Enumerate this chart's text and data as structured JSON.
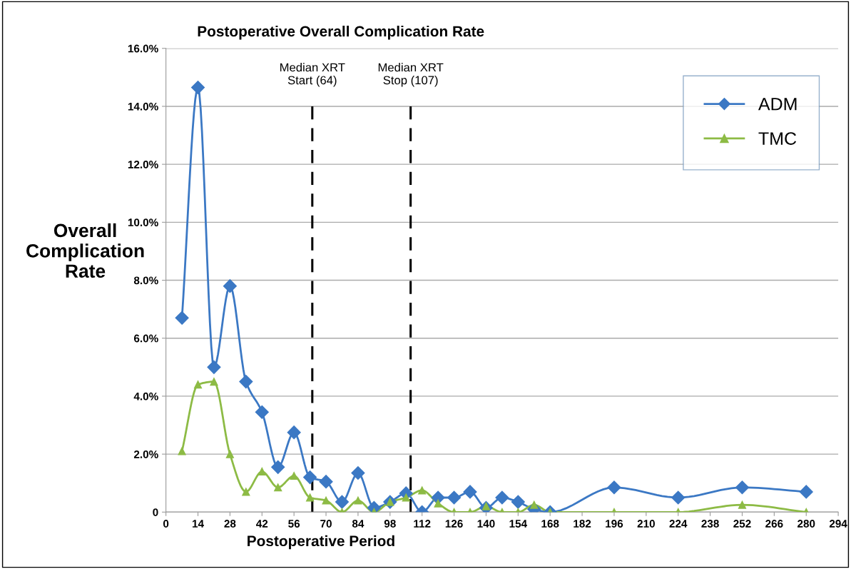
{
  "chart_data": {
    "type": "line",
    "title": "Postoperative Overall Complication Rate",
    "xlabel": "Postoperative Period",
    "ylabel": "Overall\nComplication\nRate",
    "x": [
      7,
      14,
      21,
      28,
      35,
      42,
      49,
      56,
      63,
      70,
      77,
      84,
      91,
      98,
      105,
      112,
      119,
      126,
      133,
      140,
      147,
      154,
      161,
      168,
      196,
      224,
      252,
      280
    ],
    "series": [
      {
        "name": "ADM",
        "color": "#3b78c4",
        "marker": "diamond",
        "values": [
          6.7,
          14.65,
          5.0,
          7.8,
          4.5,
          3.45,
          1.55,
          2.75,
          1.2,
          1.05,
          0.35,
          1.35,
          0.15,
          0.35,
          0.65,
          0.0,
          0.5,
          0.5,
          0.7,
          0.15,
          0.5,
          0.35,
          0.1,
          0.0,
          0.85,
          0.5,
          0.85,
          0.7
        ]
      },
      {
        "name": "TMC",
        "color": "#8dbb45",
        "marker": "triangle",
        "values": [
          2.1,
          4.4,
          4.5,
          2.0,
          0.7,
          1.4,
          0.85,
          1.25,
          0.5,
          0.4,
          0.0,
          0.4,
          0.0,
          0.35,
          0.5,
          0.75,
          0.3,
          0.0,
          0.0,
          0.2,
          0.0,
          0.0,
          0.25,
          0.0,
          0.0,
          0.0,
          0.25,
          0.0
        ]
      }
    ],
    "xlim": [
      0,
      294
    ],
    "xticks": [
      0,
      14,
      28,
      42,
      56,
      70,
      84,
      98,
      112,
      126,
      140,
      154,
      168,
      182,
      196,
      210,
      224,
      238,
      252,
      266,
      280,
      294
    ],
    "ylim": [
      0,
      16
    ],
    "yticks": [
      {
        "value": 0,
        "label": "0"
      },
      {
        "value": 2,
        "label": "2.0%"
      },
      {
        "value": 4,
        "label": "4.0%"
      },
      {
        "value": 6,
        "label": "6.0%"
      },
      {
        "value": 8,
        "label": "8.0%"
      },
      {
        "value": 10,
        "label": "10.0%"
      },
      {
        "value": 12,
        "label": "12.0%"
      },
      {
        "value": 14,
        "label": "14.0%"
      },
      {
        "value": 16,
        "label": "16.0%"
      }
    ],
    "ref_lines": [
      {
        "axis": "x",
        "value": 64,
        "label": "Median XRT\nStart (64)",
        "color": "#000000",
        "line_style": "dashed"
      },
      {
        "axis": "x",
        "value": 107,
        "label": "Median XRT\nStop (107)",
        "color": "#000000",
        "line_style": "dashed"
      }
    ],
    "grid": "y",
    "legend": "top right"
  }
}
